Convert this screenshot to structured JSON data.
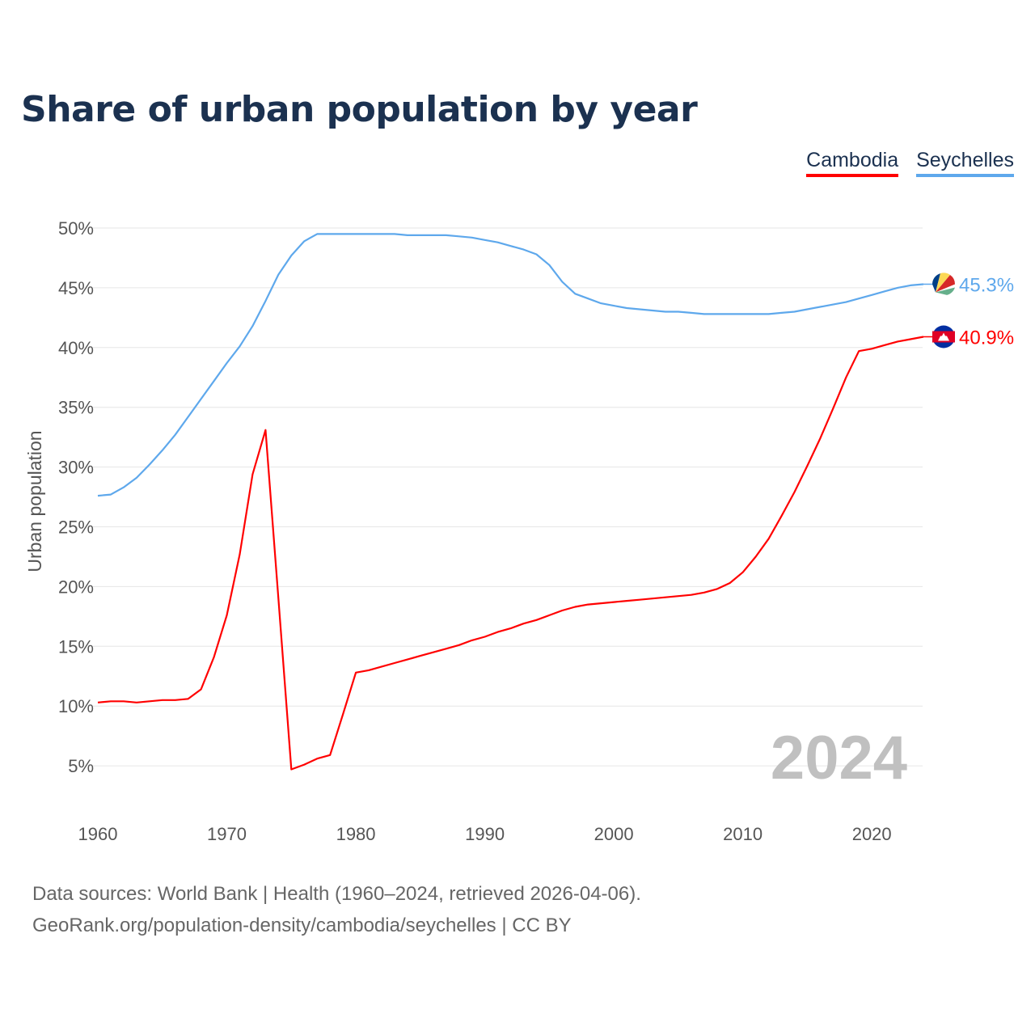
{
  "chart_data": {
    "type": "line",
    "title": "Share of urban population by year",
    "xlabel": "",
    "ylabel": "Urban population",
    "xlim": [
      1960,
      2024
    ],
    "ylim": [
      0,
      50
    ],
    "x_ticks": [
      1960,
      1970,
      1980,
      1990,
      2000,
      2010,
      2020
    ],
    "y_ticks": [
      "5%",
      "10%",
      "15%",
      "20%",
      "25%",
      "30%",
      "35%",
      "40%",
      "45%",
      "50%"
    ],
    "y_tick_values": [
      5,
      10,
      15,
      20,
      25,
      30,
      35,
      40,
      45,
      50
    ],
    "legend_position": "top-right",
    "year_label": "2024",
    "series": [
      {
        "name": "Cambodia",
        "color": "#ff0000",
        "end_label": "40.9%",
        "flag": "cambodia-flag",
        "start_year": 1960,
        "values": [
          10.3,
          10.4,
          10.4,
          10.3,
          10.4,
          10.5,
          10.5,
          10.6,
          11.4,
          14.1,
          17.6,
          22.7,
          29.4,
          33.1,
          19.0,
          4.7,
          5.1,
          5.6,
          5.9,
          9.3,
          12.8,
          13.0,
          13.3,
          13.6,
          13.9,
          14.2,
          14.5,
          14.8,
          15.1,
          15.5,
          15.8,
          16.2,
          16.5,
          16.9,
          17.2,
          17.6,
          18.0,
          18.3,
          18.5,
          18.6,
          18.7,
          18.8,
          18.9,
          19.0,
          19.1,
          19.2,
          19.3,
          19.5,
          19.8,
          20.3,
          21.2,
          22.5,
          24.0,
          25.9,
          27.9,
          30.1,
          32.4,
          34.9,
          37.5,
          39.7,
          39.9,
          40.2,
          40.5,
          40.7,
          40.9
        ]
      },
      {
        "name": "Seychelles",
        "color": "#5ea8ec",
        "end_label": "45.3%",
        "flag": "seychelles-flag",
        "start_year": 1960,
        "values": [
          27.6,
          27.7,
          28.3,
          29.1,
          30.2,
          31.4,
          32.7,
          34.2,
          35.7,
          37.2,
          38.7,
          40.1,
          41.8,
          43.9,
          46.1,
          47.7,
          48.9,
          49.5,
          49.5,
          49.5,
          49.5,
          49.5,
          49.5,
          49.5,
          49.4,
          49.4,
          49.4,
          49.4,
          49.3,
          49.2,
          49.0,
          48.8,
          48.5,
          48.2,
          47.8,
          46.9,
          45.5,
          44.5,
          44.1,
          43.7,
          43.5,
          43.3,
          43.2,
          43.1,
          43.0,
          43.0,
          42.9,
          42.8,
          42.8,
          42.8,
          42.8,
          42.8,
          42.8,
          42.9,
          43.0,
          43.2,
          43.4,
          43.6,
          43.8,
          44.1,
          44.4,
          44.7,
          45.0,
          45.2,
          45.3
        ]
      }
    ]
  },
  "footer": {
    "line1": "Data sources: World Bank | Health (1960–2024, retrieved 2026-04-06).",
    "line2": "GeoRank.org/population-density/cambodia/seychelles | CC BY"
  }
}
